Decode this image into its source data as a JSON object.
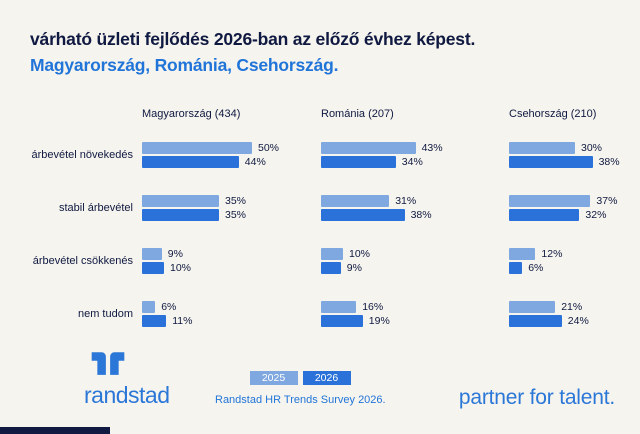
{
  "header": {
    "title": "várható üzleti fejlődés 2026-ban az előző évhez képest.",
    "subtitle": "Magyarország, Románia, Csehország."
  },
  "chart_data": {
    "type": "bar",
    "orientation": "horizontal",
    "unit": "%",
    "xlim": [
      0,
      100
    ],
    "grid": false,
    "legend": [
      "2025",
      "2026"
    ],
    "legend_position": "bottom-center",
    "categories": [
      "árbevétel növekedés",
      "stabil árbevétel",
      "árbevétel csökkenés",
      "nem tudom"
    ],
    "groups": [
      {
        "label": "Magyarország (434)",
        "series": [
          {
            "name": "2025",
            "values": [
              50,
              35,
              9,
              6
            ]
          },
          {
            "name": "2026",
            "values": [
              44,
              35,
              10,
              11
            ]
          }
        ]
      },
      {
        "label": "Románia (207)",
        "series": [
          {
            "name": "2025",
            "values": [
              43,
              31,
              10,
              16
            ]
          },
          {
            "name": "2026",
            "values": [
              34,
              38,
              9,
              19
            ]
          }
        ]
      },
      {
        "label": "Csehország (210)",
        "series": [
          {
            "name": "2025",
            "values": [
              30,
              37,
              12,
              21
            ]
          },
          {
            "name": "2026",
            "values": [
              38,
              32,
              6,
              24
            ]
          }
        ]
      }
    ],
    "colors": {
      "2025": "#7fa8e0",
      "2026": "#2a72d9"
    }
  },
  "footer": {
    "logo_text": "randstad",
    "survey_note": "Randstad HR Trends Survey 2026.",
    "tagline": "partner for talent."
  },
  "colors": {
    "background": "#f6f4ee",
    "navy": "#0f1941",
    "brand_blue": "#2175d9",
    "bar_2025": "#7fa8e0",
    "bar_2026": "#2a72d9"
  }
}
